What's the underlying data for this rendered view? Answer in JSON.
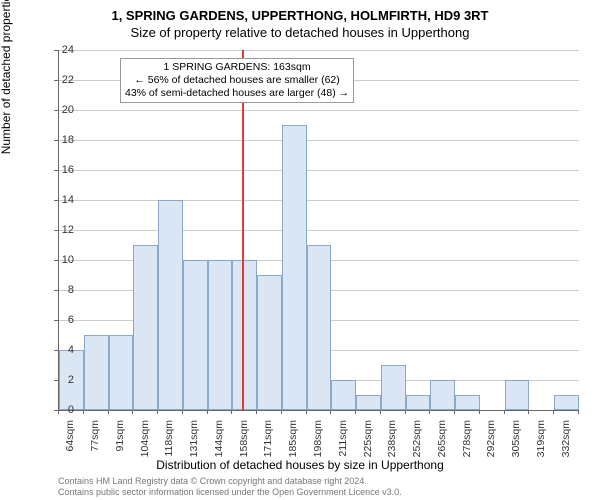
{
  "title": "1, SPRING GARDENS, UPPERTHONG, HOLMFIRTH, HD9 3RT",
  "subtitle": "Size of property relative to detached houses in Upperthong",
  "chart": {
    "type": "histogram",
    "y_label": "Number of detached properties",
    "x_label": "Distribution of detached houses by size in Upperthong",
    "ylim": [
      0,
      24
    ],
    "ytick_step": 2,
    "y_ticks": [
      0,
      2,
      4,
      6,
      8,
      10,
      12,
      14,
      16,
      18,
      20,
      22,
      24
    ],
    "bar_color": "#dbe6f4",
    "bar_border_color": "#8aa8c8",
    "grid_color": "#cccccc",
    "background_color": "#ffffff",
    "axis_color": "#666666",
    "bars": [
      {
        "label": "64sqm",
        "value": 4
      },
      {
        "label": "77sqm",
        "value": 5
      },
      {
        "label": "91sqm",
        "value": 5
      },
      {
        "label": "104sqm",
        "value": 11
      },
      {
        "label": "118sqm",
        "value": 14
      },
      {
        "label": "131sqm",
        "value": 10
      },
      {
        "label": "144sqm",
        "value": 10
      },
      {
        "label": "158sqm",
        "value": 10
      },
      {
        "label": "171sqm",
        "value": 9
      },
      {
        "label": "185sqm",
        "value": 19
      },
      {
        "label": "198sqm",
        "value": 11
      },
      {
        "label": "211sqm",
        "value": 2
      },
      {
        "label": "225sqm",
        "value": 1
      },
      {
        "label": "238sqm",
        "value": 3
      },
      {
        "label": "252sqm",
        "value": 1
      },
      {
        "label": "265sqm",
        "value": 2
      },
      {
        "label": "278sqm",
        "value": 1
      },
      {
        "label": "292sqm",
        "value": 0
      },
      {
        "label": "305sqm",
        "value": 2
      },
      {
        "label": "319sqm",
        "value": 0
      },
      {
        "label": "332sqm",
        "value": 1
      }
    ],
    "reference_line": {
      "position_index": 7.4,
      "color": "#e53935"
    },
    "annotation": {
      "line1": "1 SPRING GARDENS: 163sqm",
      "line2": "← 56% of detached houses are smaller (62)",
      "line3": "43% of semi-detached houses are larger (48) →"
    }
  },
  "footer": {
    "line1": "Contains HM Land Registry data © Crown copyright and database right 2024.",
    "line2": "Contains public sector information licensed under the Open Government Licence v3.0."
  }
}
